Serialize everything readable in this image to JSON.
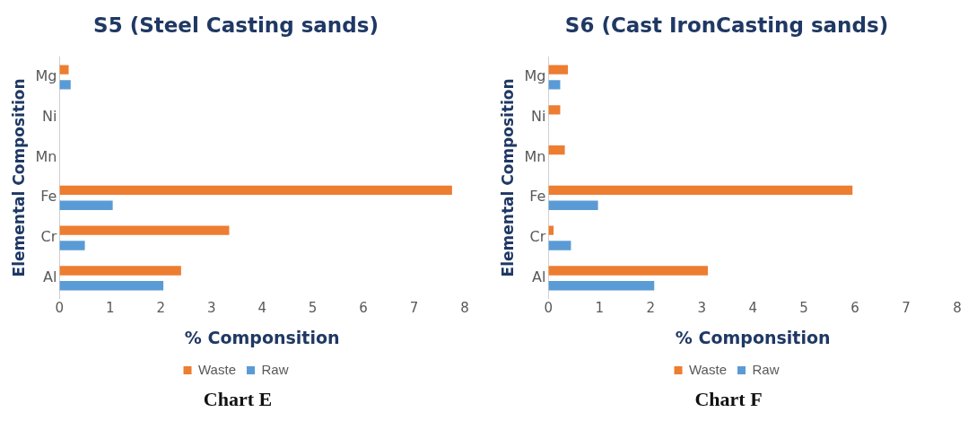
{
  "chart_data": [
    {
      "type": "bar",
      "orientation": "horizontal",
      "title": "S5 (Steel Casting sands)",
      "xlabel": "% Componsition",
      "ylabel": "Elemental Composition",
      "categories": [
        "Mg",
        "Ni",
        "Mn",
        "Fe",
        "Cr",
        "Al"
      ],
      "series": [
        {
          "name": "Waste",
          "color": "#ed7d31",
          "values": [
            0.18,
            null,
            null,
            7.75,
            3.35,
            2.4
          ]
        },
        {
          "name": "Raw",
          "color": "#5b9bd5",
          "values": [
            0.22,
            null,
            null,
            1.05,
            0.5,
            2.05
          ]
        }
      ],
      "xlim": [
        0,
        8
      ],
      "xticks": [
        0,
        1,
        2,
        3,
        4,
        5,
        6,
        7,
        8
      ],
      "grid": false,
      "legend": "bottom",
      "annotations": [
        "Chart E"
      ]
    },
    {
      "type": "bar",
      "orientation": "horizontal",
      "title": "S6 (Cast IronCasting sands)",
      "xlabel": "% Componsition",
      "ylabel": "Elemental Composition",
      "categories": [
        "Mg",
        "Ni",
        "Mn",
        "Fe",
        "Cr",
        "Al"
      ],
      "series": [
        {
          "name": "Waste",
          "color": "#ed7d31",
          "values": [
            0.38,
            0.23,
            0.32,
            5.95,
            0.1,
            3.12
          ]
        },
        {
          "name": "Raw",
          "color": "#5b9bd5",
          "values": [
            0.23,
            0,
            0,
            0.97,
            0.44,
            2.07
          ]
        }
      ],
      "xlim": [
        0,
        8
      ],
      "xticks": [
        0,
        1,
        2,
        3,
        4,
        5,
        6,
        7,
        8
      ],
      "grid": false,
      "legend": "bottom",
      "annotations": [
        "Chart F"
      ]
    }
  ]
}
